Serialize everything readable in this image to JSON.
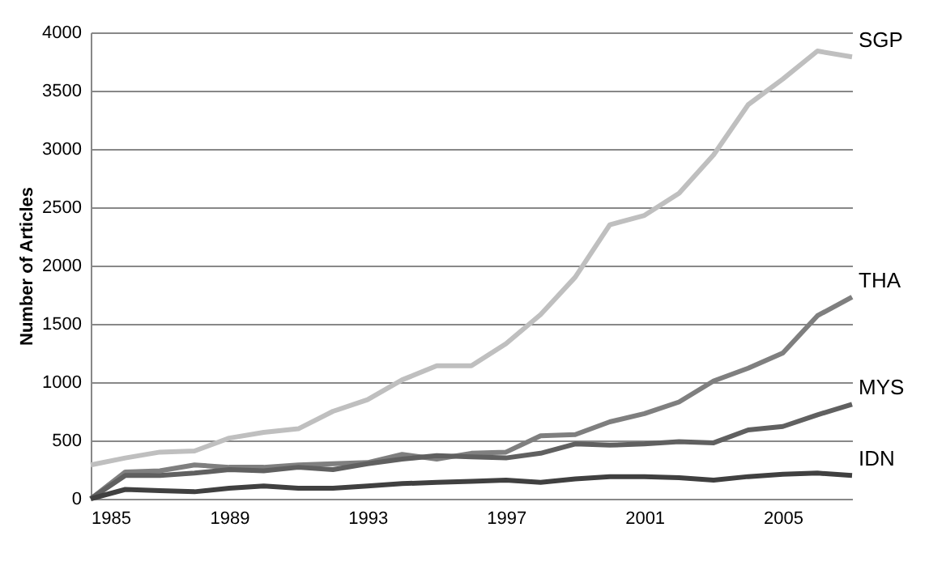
{
  "chart_data": {
    "type": "line",
    "ylabel": "Number of Articles",
    "x": [
      1985,
      1986,
      1987,
      1988,
      1989,
      1990,
      1991,
      1992,
      1993,
      1994,
      1995,
      1996,
      1997,
      1998,
      1999,
      2000,
      2001,
      2002,
      2003,
      2004,
      2005,
      2006,
      2007
    ],
    "xlim": [
      1985,
      2007
    ],
    "xticks": [
      1985,
      1989,
      1993,
      1997,
      2001,
      2005
    ],
    "ylim": [
      0,
      4000
    ],
    "yticks": [
      0,
      500,
      1000,
      1500,
      2000,
      2500,
      3000,
      3500,
      4000
    ],
    "grid": "y",
    "legend": false,
    "marker": "none",
    "line_style": "solid",
    "series": [
      {
        "name": "SGP",
        "color": "#bfbfbf",
        "values": [
          290,
          350,
          400,
          410,
          520,
          570,
          600,
          750,
          850,
          1020,
          1140,
          1140,
          1330,
          1580,
          1900,
          2350,
          2430,
          2620,
          2950,
          3380,
          3600,
          3840,
          3790
        ]
      },
      {
        "name": "THA",
        "color": "#7f7f7f",
        "values": [
          0,
          230,
          240,
          290,
          270,
          270,
          290,
          300,
          310,
          380,
          340,
          390,
          400,
          540,
          550,
          660,
          730,
          830,
          1010,
          1120,
          1250,
          1570,
          1730
        ]
      },
      {
        "name": "MYS",
        "color": "#606060",
        "values": [
          0,
          200,
          200,
          220,
          250,
          240,
          270,
          250,
          300,
          340,
          370,
          360,
          350,
          390,
          470,
          460,
          470,
          490,
          480,
          590,
          620,
          720,
          810
        ]
      },
      {
        "name": "IDN",
        "color": "#404040",
        "values": [
          0,
          80,
          70,
          60,
          90,
          110,
          90,
          90,
          110,
          130,
          140,
          150,
          160,
          140,
          170,
          190,
          190,
          180,
          160,
          190,
          210,
          220,
          200
        ]
      }
    ]
  }
}
